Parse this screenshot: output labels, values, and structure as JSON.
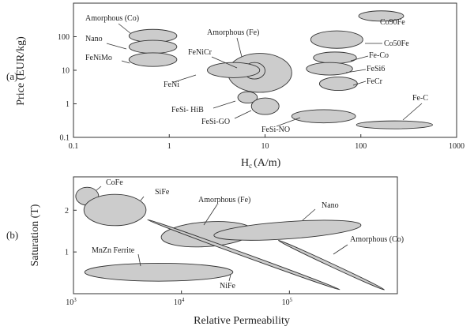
{
  "chart_data": [
    {
      "panel": "(a)",
      "type": "scatter",
      "xlabel": "H",
      "xlabel_sub": "c",
      "xlabel_unit": "(A/m)",
      "ylabel": "Price (EUR/kg)",
      "xscale": "log",
      "yscale": "log",
      "xlim": [
        0.1,
        1000
      ],
      "ylim": [
        0.1,
        1000
      ],
      "xticks": [
        "0.1",
        "1",
        "10",
        "100",
        "1000"
      ],
      "yticks": [
        "0.1",
        "1",
        "10",
        "100"
      ],
      "regions": [
        {
          "label": "Amorphous (Co)",
          "x": [
            0.38,
            1.2
          ],
          "y": [
            68,
            165
          ]
        },
        {
          "label": "Nano",
          "x": [
            0.38,
            1.2
          ],
          "y": [
            32,
            78
          ]
        },
        {
          "label": "FeNiMo",
          "x": [
            0.38,
            1.2
          ],
          "y": [
            13,
            33
          ]
        },
        {
          "label": "Amorphous (Fe)",
          "x": [
            4.1,
            19
          ],
          "y": [
            2.2,
            32
          ]
        },
        {
          "label": "FeNiCr",
          "x": [
            6,
            10
          ],
          "y": [
            5.5,
            17
          ]
        },
        {
          "label": "FeNi",
          "x": [
            2.5,
            8.8
          ],
          "y": [
            6,
            17
          ]
        },
        {
          "label": "FeSi- HiB",
          "x": [
            5.2,
            8.3
          ],
          "y": [
            1.05,
            2.3
          ]
        },
        {
          "label": "FeSi-GO",
          "x": [
            7.2,
            14
          ],
          "y": [
            0.48,
            1.5
          ]
        },
        {
          "label": "FeSi-NO",
          "x": [
            19,
            88
          ],
          "y": [
            0.27,
            0.67
          ]
        },
        {
          "label": "Co90Fe",
          "x": [
            95,
            280
          ],
          "y": [
            290,
            590
          ]
        },
        {
          "label": "Co50Fe",
          "x": [
            30,
            105
          ],
          "y": [
            45,
            150
          ]
        },
        {
          "label": "Fe-Co",
          "x": [
            32,
            90
          ],
          "y": [
            16,
            35
          ]
        },
        {
          "label": "FeSi6",
          "x": [
            27,
            82
          ],
          "y": [
            7.2,
            17
          ]
        },
        {
          "label": "FeCr",
          "x": [
            37,
            92
          ],
          "y": [
            2.5,
            6.3
          ]
        },
        {
          "label": "Fe-C",
          "x": [
            90,
            560
          ],
          "y": [
            0.18,
            0.31
          ]
        }
      ]
    },
    {
      "panel": "(b)",
      "type": "scatter",
      "xlabel": "Relative Permeability",
      "ylabel": "Saturation (T)",
      "xscale": "log",
      "xlim": [
        1000,
        1000000
      ],
      "ylim": [
        0,
        2.8
      ],
      "xticks": [
        "10",
        "10",
        "10"
      ],
      "xtick_exponents": [
        "3",
        "4",
        "5"
      ],
      "yticks": [
        "1",
        "2"
      ],
      "regions": [
        {
          "label": "CoFe",
          "x": [
            1050,
            1710
          ],
          "y": [
            2.12,
            2.55
          ],
          "angle": 0
        },
        {
          "label": "SiFe",
          "x": [
            1250,
            4700
          ],
          "y": [
            1.63,
            2.38
          ],
          "angle": 0
        },
        {
          "label": "MnZn Ferrite",
          "x": [
            1270,
            30000
          ],
          "y": [
            0.3,
            0.73
          ],
          "angle": 0
        },
        {
          "label": "Amorphous (Fe)",
          "x": [
            6500,
            46000
          ],
          "y": [
            1.12,
            1.73
          ],
          "angle": -4
        },
        {
          "label": "Nano",
          "x": [
            20000,
            460000
          ],
          "y": [
            1.28,
            1.76
          ],
          "angle": -4
        },
        {
          "label": "NiFe",
          "x": [
            4900,
            290000
          ],
          "y": [
            0.38,
            1.49
          ],
          "angle": 20
        },
        {
          "label": "Amorphous (Co)",
          "x": [
            80000,
            750000
          ],
          "y": [
            0.24,
            1.13
          ],
          "angle": 25
        }
      ]
    }
  ]
}
